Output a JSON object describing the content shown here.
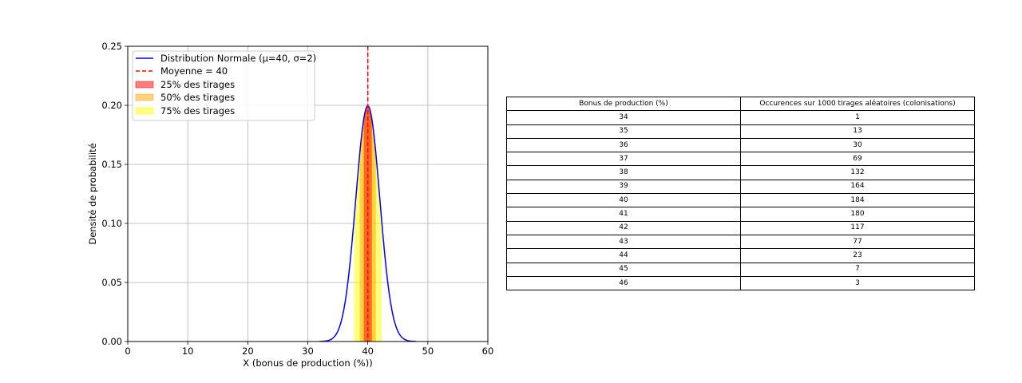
{
  "chart_data": {
    "type": "line",
    "xlabel": "X (bonus de production (%))",
    "ylabel": "Densité de probabilité",
    "xlim": [
      0,
      60
    ],
    "ylim": [
      0,
      0.25
    ],
    "x_ticks": [
      "0",
      "10",
      "20",
      "30",
      "40",
      "50",
      "60"
    ],
    "y_ticks": [
      "0.00",
      "0.05",
      "0.10",
      "0.15",
      "0.20",
      "0.25"
    ],
    "grid": true,
    "legend_position": "top-left",
    "distribution": {
      "mean": 40,
      "sigma": 2,
      "x_range": [
        32,
        48
      ]
    },
    "series": [
      {
        "name": "Distribution Normale (μ=40, σ=2)",
        "kind": "line",
        "color": "#0000ff"
      },
      {
        "name": "Moyenne = 40",
        "kind": "vline",
        "x": 40,
        "color": "#ff0000",
        "dashed": true
      },
      {
        "name": "25% des tirages",
        "kind": "band",
        "x_range": [
          39.33,
          40.67
        ],
        "color": "#ff0000",
        "opacity": 0.5
      },
      {
        "name": "50% des tirages",
        "kind": "band",
        "x_range": [
          38.65,
          41.35
        ],
        "color": "#ffa500",
        "opacity": 0.5
      },
      {
        "name": "75% des tirages",
        "kind": "band",
        "x_range": [
          37.7,
          42.3
        ],
        "color": "#ffff00",
        "opacity": 0.5
      }
    ]
  },
  "table": {
    "headers": [
      "Bonus de production (%)",
      "Occurences sur 1000 tirages aléatoires (colonisations)"
    ],
    "rows": [
      [
        "34",
        "1"
      ],
      [
        "35",
        "13"
      ],
      [
        "36",
        "30"
      ],
      [
        "37",
        "69"
      ],
      [
        "38",
        "132"
      ],
      [
        "39",
        "164"
      ],
      [
        "40",
        "184"
      ],
      [
        "41",
        "180"
      ],
      [
        "42",
        "117"
      ],
      [
        "43",
        "77"
      ],
      [
        "44",
        "23"
      ],
      [
        "45",
        "7"
      ],
      [
        "46",
        "3"
      ]
    ]
  }
}
